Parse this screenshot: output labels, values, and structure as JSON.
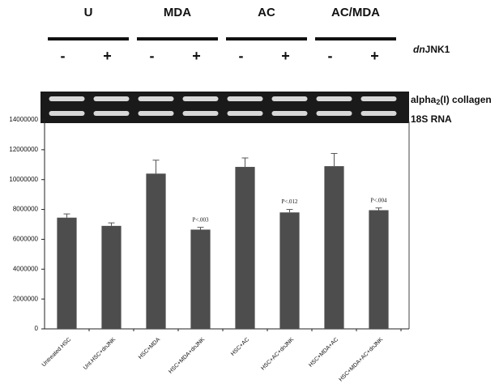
{
  "groups": [
    "U",
    "MDA",
    "AC",
    "AC/MDA"
  ],
  "treatment_signs": [
    "-",
    "+",
    "-",
    "+",
    "-",
    "+",
    "-",
    "+"
  ],
  "treatment_label": [
    "dn",
    "JNK1"
  ],
  "gel": {
    "collagen_label": [
      "alpha",
      "2",
      "(I) collagen"
    ],
    "rna_label": "18S RNA"
  },
  "chart_data": {
    "type": "bar",
    "categories": [
      "Untreated HSC",
      "Unt.HSC+dnJNK",
      "HSC+MDA",
      "HSC+MDA+dnJNK",
      "HSC+AC",
      "HSC+AC+dnJNK",
      "HSC+MDA+AC",
      "HSC+MDA+AC+dnJNK"
    ],
    "values": [
      7450000,
      6900000,
      10400000,
      6650000,
      10850000,
      7800000,
      10900000,
      7950000
    ],
    "errors": [
      250000,
      200000,
      900000,
      150000,
      600000,
      200000,
      850000,
      150000
    ],
    "annotations": [
      null,
      null,
      null,
      "P<.003",
      null,
      "P<.012",
      null,
      "P<.004"
    ],
    "color": "#4d4d4d",
    "ylim": [
      0,
      14000000
    ],
    "yticks": [
      0,
      2000000,
      4000000,
      6000000,
      8000000,
      10000000,
      12000000,
      14000000
    ]
  }
}
